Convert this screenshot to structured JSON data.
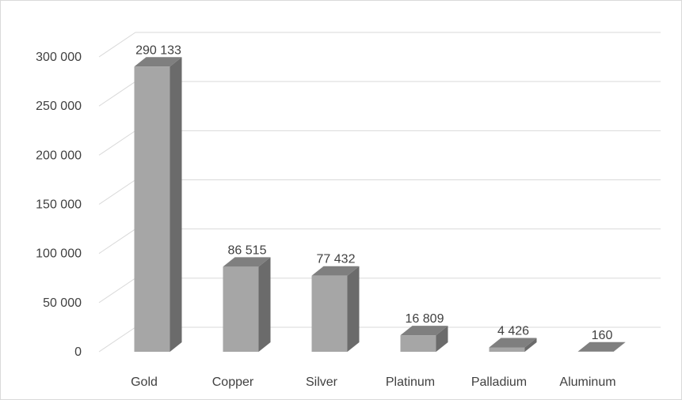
{
  "chart_data": {
    "type": "bar",
    "style": "3d-column",
    "categories": [
      "Gold",
      "Copper",
      "Silver",
      "Platinum",
      "Palladium",
      "Aluminum"
    ],
    "values": [
      290133,
      86515,
      77432,
      16809,
      4426,
      160
    ],
    "value_labels": [
      "290 133",
      "86 515",
      "77 432",
      "16 809",
      "4 426",
      "160"
    ],
    "ylim": [
      0,
      300000
    ],
    "yticks": [
      0,
      50000,
      100000,
      150000,
      200000,
      250000,
      300000
    ],
    "ytick_labels": [
      "0",
      "50 000",
      "100 000",
      "150 000",
      "200 000",
      "250 000",
      "300 000"
    ],
    "grid": true,
    "legend": "none",
    "colors": {
      "bar_front": "#a6a6a6",
      "bar_side": "#6b6b6b",
      "bar_top": "#7f7f7f",
      "grid": "#d9d9d9",
      "text": "#404040"
    }
  }
}
